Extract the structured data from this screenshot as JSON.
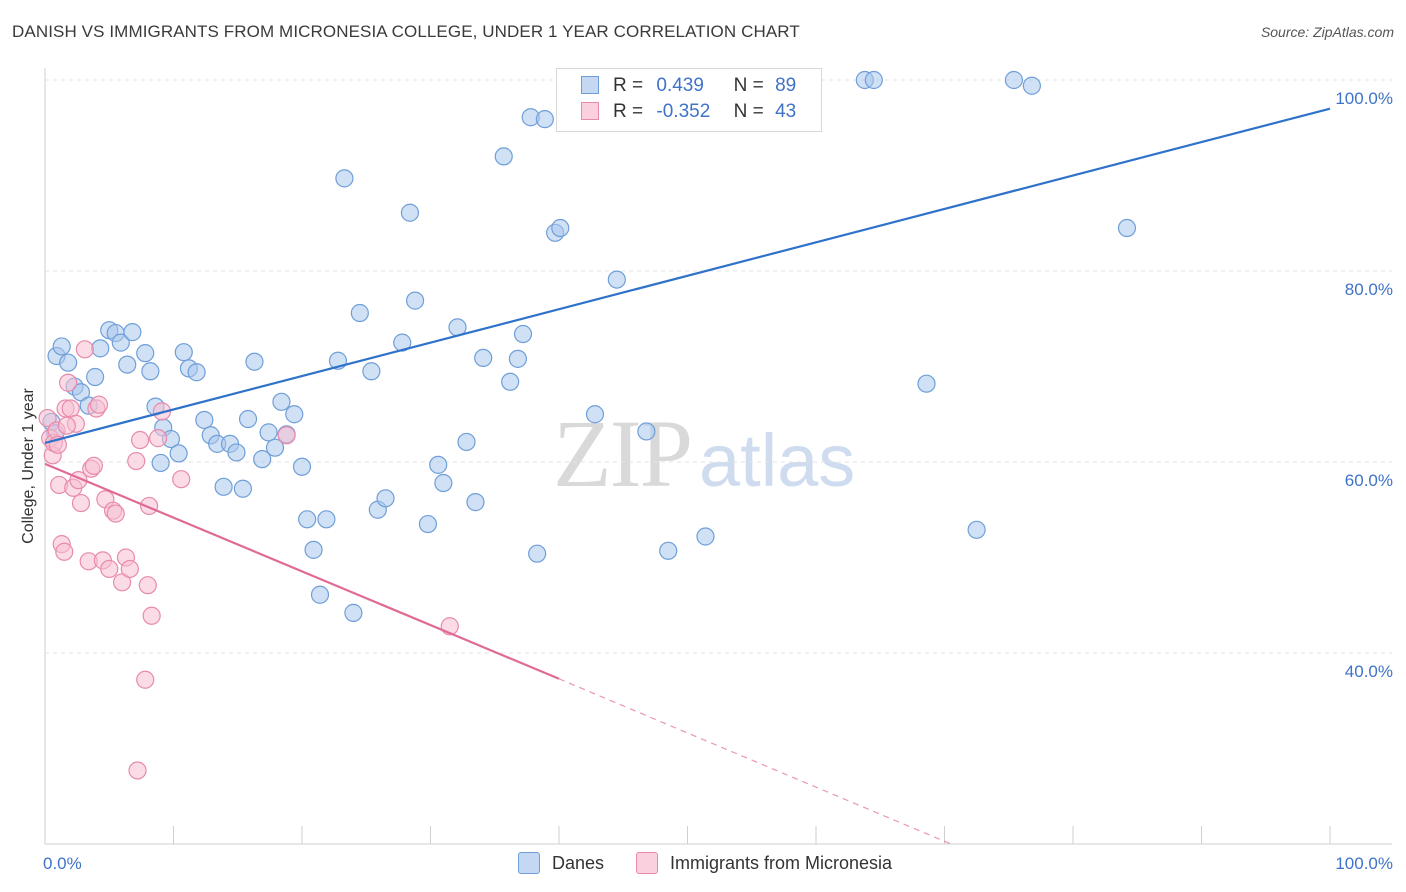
{
  "header": {
    "title": "DANISH VS IMMIGRANTS FROM MICRONESIA COLLEGE, UNDER 1 YEAR CORRELATION CHART",
    "source": "Source: ZipAtlas.com"
  },
  "watermark": {
    "zip": "ZIP",
    "atlas": "atlas"
  },
  "legend": {
    "rows": [
      {
        "r_label": "R =",
        "r_value": "0.439",
        "n_label": "N =",
        "n_value": "89"
      },
      {
        "r_label": "R =",
        "r_value": "-0.352",
        "n_label": "N =",
        "n_value": "43"
      }
    ]
  },
  "bottom_legend": {
    "danes": "Danes",
    "micronesia": "Immigrants from Micronesia"
  },
  "colors": {
    "danes_fill": "#aac6ec",
    "danes_stroke": "#6f9fd8",
    "danes_line": "#2f72c9",
    "micro_fill": "#f7bfd1",
    "micro_stroke": "#e88aab",
    "micro_line": "#e06a96",
    "tick_text": "#3f73c8",
    "grid": "#e3e3e3"
  },
  "chart_data": {
    "type": "scatter",
    "title": "DANISH VS IMMIGRANTS FROM MICRONESIA COLLEGE, UNDER 1 YEAR CORRELATION CHART",
    "xlabel": "",
    "ylabel": "College, Under 1 year",
    "xlim": [
      0,
      100
    ],
    "ylim": [
      20,
      102
    ],
    "x_tick_labels": [
      "0.0%",
      "100.0%"
    ],
    "y_ticks": [
      40,
      60,
      80,
      100
    ],
    "y_tick_labels": [
      "40.0%",
      "60.0%",
      "80.0%",
      "100.0%"
    ],
    "grid": true,
    "legend_position": "top-center",
    "series": [
      {
        "name": "Danes",
        "R": 0.439,
        "N": 89,
        "trend": {
          "x": [
            0,
            100
          ],
          "y": [
            62.0,
            97.0
          ],
          "extrapolated_to": null
        },
        "points": [
          [
            0.5,
            64.2
          ],
          [
            0.8,
            63.0
          ],
          [
            0.9,
            71.1
          ],
          [
            1.3,
            72.1
          ],
          [
            1.8,
            70.4
          ],
          [
            2.3,
            67.9
          ],
          [
            2.8,
            67.3
          ],
          [
            3.4,
            65.9
          ],
          [
            3.9,
            68.9
          ],
          [
            4.3,
            71.9
          ],
          [
            5.0,
            73.8
          ],
          [
            5.5,
            73.5
          ],
          [
            5.9,
            72.5
          ],
          [
            6.4,
            70.2
          ],
          [
            6.8,
            73.6
          ],
          [
            7.8,
            71.4
          ],
          [
            8.2,
            69.5
          ],
          [
            8.6,
            65.8
          ],
          [
            9.0,
            59.9
          ],
          [
            9.2,
            63.6
          ],
          [
            9.8,
            62.4
          ],
          [
            10.4,
            60.9
          ],
          [
            10.8,
            71.5
          ],
          [
            11.2,
            69.8
          ],
          [
            11.8,
            69.4
          ],
          [
            12.4,
            64.4
          ],
          [
            12.9,
            62.8
          ],
          [
            13.4,
            61.9
          ],
          [
            13.9,
            57.4
          ],
          [
            14.4,
            61.9
          ],
          [
            14.9,
            61.0
          ],
          [
            15.4,
            57.2
          ],
          [
            15.8,
            64.5
          ],
          [
            16.3,
            70.5
          ],
          [
            16.9,
            60.3
          ],
          [
            17.4,
            63.1
          ],
          [
            17.9,
            61.5
          ],
          [
            18.4,
            66.3
          ],
          [
            18.8,
            62.9
          ],
          [
            19.4,
            65.0
          ],
          [
            20.0,
            59.5
          ],
          [
            20.4,
            54.0
          ],
          [
            20.9,
            50.8
          ],
          [
            21.4,
            46.1
          ],
          [
            21.9,
            54.0
          ],
          [
            22.8,
            70.6
          ],
          [
            23.3,
            89.7
          ],
          [
            24.0,
            44.2
          ],
          [
            24.5,
            75.6
          ],
          [
            25.4,
            69.5
          ],
          [
            25.9,
            55.0
          ],
          [
            26.5,
            56.2
          ],
          [
            27.8,
            72.5
          ],
          [
            28.4,
            86.1
          ],
          [
            28.8,
            76.9
          ],
          [
            29.8,
            53.5
          ],
          [
            30.6,
            59.7
          ],
          [
            31.0,
            57.8
          ],
          [
            32.1,
            74.1
          ],
          [
            32.8,
            62.1
          ],
          [
            33.5,
            55.8
          ],
          [
            34.1,
            70.9
          ],
          [
            35.7,
            92.0
          ],
          [
            36.2,
            68.4
          ],
          [
            36.8,
            70.8
          ],
          [
            37.2,
            73.4
          ],
          [
            37.8,
            96.1
          ],
          [
            38.3,
            50.4
          ],
          [
            38.9,
            95.9
          ],
          [
            39.7,
            84.0
          ],
          [
            40.1,
            84.5
          ],
          [
            41.3,
            100.0
          ],
          [
            42.0,
            100.0
          ],
          [
            42.8,
            65.0
          ],
          [
            44.5,
            79.1
          ],
          [
            46.8,
            63.2
          ],
          [
            47.3,
            100.0
          ],
          [
            48.5,
            50.7
          ],
          [
            51.4,
            52.2
          ],
          [
            53.0,
            100.0
          ],
          [
            55.0,
            100.0
          ],
          [
            58.8,
            100.0
          ],
          [
            63.8,
            100.0
          ],
          [
            64.5,
            100.0
          ],
          [
            68.6,
            68.2
          ],
          [
            72.5,
            52.9
          ],
          [
            75.4,
            100.0
          ],
          [
            76.8,
            99.4
          ],
          [
            84.2,
            84.5
          ]
        ]
      },
      {
        "name": "Immigrants from Micronesia",
        "R": -0.352,
        "N": 43,
        "trend": {
          "x": [
            0,
            40
          ],
          "y": [
            59.8,
            37.3
          ],
          "extrapolated_to": [
            70.5,
            20.0
          ]
        },
        "points": [
          [
            0.2,
            64.6
          ],
          [
            0.4,
            62.5
          ],
          [
            0.6,
            60.7
          ],
          [
            0.7,
            62.0
          ],
          [
            0.9,
            63.3
          ],
          [
            1.1,
            57.6
          ],
          [
            1.3,
            51.4
          ],
          [
            1.5,
            50.6
          ],
          [
            1.6,
            65.6
          ],
          [
            1.8,
            68.3
          ],
          [
            2.0,
            65.6
          ],
          [
            2.2,
            57.3
          ],
          [
            2.4,
            64.0
          ],
          [
            2.6,
            58.1
          ],
          [
            2.8,
            55.7
          ],
          [
            3.1,
            71.8
          ],
          [
            3.4,
            49.6
          ],
          [
            3.6,
            59.3
          ],
          [
            3.8,
            59.6
          ],
          [
            4.0,
            65.6
          ],
          [
            4.2,
            66.0
          ],
          [
            4.5,
            49.7
          ],
          [
            4.7,
            56.1
          ],
          [
            5.0,
            48.8
          ],
          [
            5.3,
            54.9
          ],
          [
            5.5,
            54.6
          ],
          [
            6.0,
            47.4
          ],
          [
            6.3,
            50.0
          ],
          [
            6.6,
            48.8
          ],
          [
            7.1,
            60.1
          ],
          [
            7.4,
            62.3
          ],
          [
            7.8,
            37.2
          ],
          [
            8.0,
            47.1
          ],
          [
            8.1,
            55.4
          ],
          [
            8.3,
            43.9
          ],
          [
            8.8,
            62.5
          ],
          [
            9.1,
            65.3
          ],
          [
            10.6,
            58.2
          ],
          [
            18.8,
            62.8
          ],
          [
            31.5,
            42.8
          ],
          [
            7.2,
            27.7
          ],
          [
            1.0,
            61.8
          ],
          [
            1.7,
            63.8
          ]
        ]
      }
    ]
  }
}
